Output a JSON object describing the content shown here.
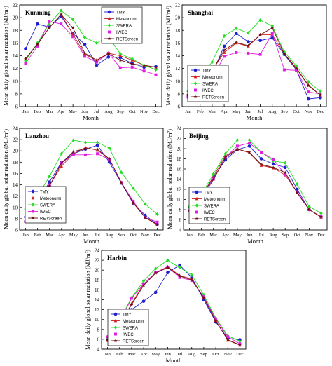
{
  "figure": {
    "ylabel": "Mean daily global solar radiation (MJ/m²)",
    "xlabel": "Month",
    "months": [
      "Jan",
      "Feb",
      "Mar",
      "Apr",
      "May",
      "Jun",
      "Jul",
      "Aug",
      "Sep",
      "Oct",
      "Nov",
      "Dec"
    ],
    "series_styles": [
      {
        "name": "TMY",
        "color": "#1f1fd0",
        "marker": "circle"
      },
      {
        "name": "Meteonorm",
        "color": "#d01f1f",
        "marker": "triangle"
      },
      {
        "name": "SWERA",
        "color": "#22dd22",
        "marker": "diamond"
      },
      {
        "name": "IWEC",
        "color": "#e020e0",
        "marker": "square"
      },
      {
        "name": "RETScreen",
        "color": "#6b0f0f",
        "marker": "star"
      }
    ]
  },
  "chart_data": [
    {
      "type": "line",
      "title": "Kunming",
      "ylim": [
        6,
        22
      ],
      "yticks": [
        6,
        8,
        10,
        12,
        14,
        16,
        18,
        20,
        22
      ],
      "legend": "top-right",
      "categories": [
        "Jan",
        "Feb",
        "Mar",
        "Apr",
        "May",
        "Jun",
        "Jul",
        "Aug",
        "Sep",
        "Oct",
        "Nov",
        "Dec"
      ],
      "series": [
        {
          "name": "TMY",
          "values": [
            15.1,
            19.0,
            18.5,
            20.2,
            17.5,
            15.8,
            12.5,
            13.8,
            13.7,
            12.8,
            12.2,
            12.3
          ]
        },
        {
          "name": "Meteonorm",
          "values": [
            13.5,
            15.9,
            18.4,
            20.5,
            17.4,
            14.2,
            13.3,
            14.4,
            14.0,
            13.3,
            12.5,
            12.2
          ]
        },
        {
          "name": "SWERA",
          "values": [
            13.2,
            16.0,
            19.0,
            21.1,
            19.7,
            16.9,
            16.0,
            17.0,
            14.3,
            13.5,
            12.5,
            11.8
          ]
        },
        {
          "name": "IWEC",
          "values": [
            12.8,
            15.5,
            19.4,
            19.0,
            17.0,
            13.9,
            13.0,
            14.4,
            12.1,
            12.2,
            11.6,
            11.0
          ]
        },
        {
          "name": "RETScreen",
          "values": [
            13.5,
            15.8,
            18.4,
            20.5,
            18.4,
            14.4,
            13.3,
            14.3,
            13.3,
            12.7,
            12.5,
            12.2
          ]
        }
      ]
    },
    {
      "type": "line",
      "title": "Shanghai",
      "ylim": [
        6,
        22
      ],
      "yticks": [
        6,
        8,
        10,
        12,
        14,
        16,
        18,
        20,
        22
      ],
      "legend": "bottom-left",
      "categories": [
        "Jan",
        "Feb",
        "Mar",
        "Apr",
        "May",
        "Jun",
        "Jul",
        "Aug",
        "Sep",
        "Oct",
        "Nov",
        "Dec"
      ],
      "series": [
        {
          "name": "TMY",
          "values": [
            7.5,
            7.3,
            11.2,
            15.5,
            17.5,
            16.2,
            16.4,
            16.8,
            14.2,
            11.8,
            7.2,
            7.4
          ]
        },
        {
          "name": "Meteonorm",
          "values": [
            7.9,
            9.7,
            11.7,
            14.5,
            16.0,
            15.5,
            17.3,
            17.3,
            14.3,
            12.1,
            9.4,
            7.8
          ]
        },
        {
          "name": "SWERA",
          "values": [
            8.4,
            10.9,
            13.0,
            17.1,
            18.3,
            17.6,
            19.6,
            18.7,
            14.6,
            12.4,
            9.9,
            8.4
          ]
        },
        {
          "name": "IWEC",
          "values": [
            7.5,
            8.5,
            10.5,
            13.9,
            14.5,
            14.4,
            14.2,
            17.5,
            11.8,
            11.7,
            8.3,
            8.0
          ]
        },
        {
          "name": "RETScreen",
          "values": [
            7.9,
            9.5,
            11.6,
            14.9,
            16.1,
            15.6,
            17.3,
            18.4,
            14.3,
            12.0,
            9.3,
            7.8
          ]
        }
      ]
    },
    {
      "type": "line",
      "title": "Lanzhou",
      "ylim": [
        6,
        24
      ],
      "yticks": [
        6,
        8,
        10,
        12,
        14,
        16,
        18,
        20,
        22,
        24
      ],
      "legend": "bottom-left",
      "categories": [
        "Jan",
        "Feb",
        "Mar",
        "Apr",
        "May",
        "Jun",
        "Jul",
        "Aug",
        "Sep",
        "Oct",
        "Nov",
        "Dec"
      ],
      "series": [
        {
          "name": "TMY",
          "values": [
            8.3,
            10.9,
            14.5,
            18.0,
            19.5,
            20.3,
            21.0,
            18.0,
            14.3,
            10.7,
            8.6,
            7.0
          ]
        },
        {
          "name": "Meteonorm",
          "values": [
            7.5,
            11.1,
            13.9,
            17.3,
            19.5,
            20.6,
            20.1,
            18.6,
            14.4,
            10.8,
            8.2,
            6.9
          ]
        },
        {
          "name": "SWERA",
          "values": [
            9.7,
            12.0,
            15.5,
            19.5,
            21.9,
            21.5,
            21.5,
            20.5,
            16.2,
            13.4,
            10.6,
            8.8
          ]
        },
        {
          "name": "IWEC",
          "values": [
            7.5,
            11.5,
            13.8,
            17.9,
            19.3,
            19.3,
            19.5,
            18.5,
            14.4,
            11.1,
            8.2,
            7.4
          ]
        },
        {
          "name": "RETScreen",
          "values": [
            7.5,
            11.0,
            13.8,
            17.8,
            19.9,
            20.4,
            20.3,
            18.6,
            14.4,
            10.8,
            8.2,
            7.0
          ]
        }
      ]
    },
    {
      "type": "line",
      "title": "Beijing",
      "ylim": [
        4,
        24
      ],
      "yticks": [
        4,
        6,
        8,
        10,
        12,
        14,
        16,
        18,
        20,
        22,
        24
      ],
      "legend": "bottom-left",
      "categories": [
        "Jan",
        "Feb",
        "Mar",
        "Apr",
        "May",
        "Jun",
        "Jul",
        "Aug",
        "Sep",
        "Oct",
        "Nov",
        "Dec"
      ],
      "series": [
        {
          "name": "TMY",
          "values": [
            8.5,
            10.6,
            14.3,
            17.8,
            19.8,
            20.5,
            18.0,
            17.0,
            16.3,
            12.0,
            8.0,
            6.6
          ]
        },
        {
          "name": "Meteonorm",
          "values": [
            7.8,
            10.7,
            14.5,
            18.6,
            19.9,
            19.2,
            16.7,
            16.2,
            14.8,
            11.4,
            8.0,
            6.5
          ]
        },
        {
          "name": "SWERA",
          "values": [
            8.6,
            11.0,
            15.0,
            19.0,
            21.7,
            21.7,
            19.3,
            17.6,
            17.2,
            13.0,
            8.6,
            7.3
          ]
        },
        {
          "name": "IWEC",
          "values": [
            7.8,
            10.3,
            14.0,
            18.3,
            20.5,
            21.1,
            19.3,
            17.9,
            14.9,
            11.5,
            8.0,
            6.6
          ]
        },
        {
          "name": "RETScreen",
          "values": [
            7.9,
            10.3,
            13.9,
            18.3,
            19.9,
            19.3,
            16.9,
            16.3,
            15.3,
            11.3,
            8.0,
            6.6
          ]
        }
      ]
    },
    {
      "type": "line",
      "title": "Harbin",
      "ylim": [
        4,
        24
      ],
      "yticks": [
        4,
        6,
        8,
        10,
        12,
        14,
        16,
        18,
        20,
        22,
        24
      ],
      "legend": "bottom-left",
      "categories": [
        "Jan",
        "Feb",
        "Mar",
        "Apr",
        "May",
        "Jun",
        "Jul",
        "Aug",
        "Sep",
        "Oct",
        "Nov",
        "Dec"
      ],
      "series": [
        {
          "name": "TMY",
          "values": [
            5.8,
            9.2,
            12.0,
            13.7,
            15.5,
            19.5,
            21.0,
            18.5,
            14.0,
            9.5,
            6.2,
            5.9
          ]
        },
        {
          "name": "Meteonorm",
          "values": [
            5.8,
            8.9,
            13.2,
            17.2,
            19.5,
            20.7,
            18.9,
            18.2,
            14.4,
            9.8,
            5.8,
            4.8
          ]
        },
        {
          "name": "SWERA",
          "values": [
            6.2,
            9.9,
            14.4,
            17.8,
            20.3,
            22.0,
            20.5,
            19.0,
            15.0,
            10.3,
            6.7,
            5.6
          ]
        },
        {
          "name": "IWEC",
          "values": [
            6.5,
            9.5,
            14.3,
            17.2,
            19.5,
            20.6,
            18.5,
            17.9,
            14.6,
            10.1,
            6.5,
            5.1
          ]
        },
        {
          "name": "RETScreen",
          "values": [
            5.8,
            9.0,
            13.0,
            16.9,
            19.4,
            20.5,
            18.8,
            18.0,
            14.4,
            9.7,
            5.9,
            4.9
          ]
        }
      ]
    }
  ]
}
